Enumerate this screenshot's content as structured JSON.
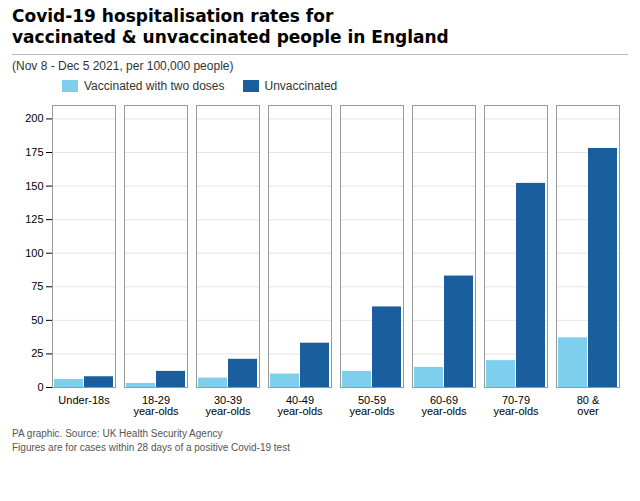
{
  "chart_data": {
    "type": "bar",
    "title": "Covid-19 hospitalisation rates for\nvaccinated & unvaccinated people in England",
    "subtitle": "(Nov 8 - Dec 5 2021, per 100,000 people)",
    "categories": [
      "Under-18s",
      "18-29\nyear-olds",
      "30-39\nyear-olds",
      "40-49\nyear-olds",
      "50-59\nyear-olds",
      "60-69\nyear-olds",
      "70-79\nyear-olds",
      "80 &\nover"
    ],
    "series": [
      {
        "name": "Vaccinated with two doses",
        "color": "#7ecfed",
        "values": [
          6,
          3,
          7,
          10,
          12,
          15,
          20,
          37
        ]
      },
      {
        "name": "Unvaccinated",
        "color": "#1a5e9e",
        "values": [
          8,
          12,
          21,
          33,
          60,
          83,
          152,
          178
        ]
      }
    ],
    "ylim": [
      0,
      210
    ],
    "yticks": [
      0,
      25,
      50,
      75,
      100,
      125,
      150,
      175,
      200
    ],
    "grid": true,
    "legend": "top",
    "annotations": [
      "PA graphic. Source: UK Health Security Agency",
      "Figures are for cases within 28 days of a positive Covid-19 test"
    ]
  }
}
